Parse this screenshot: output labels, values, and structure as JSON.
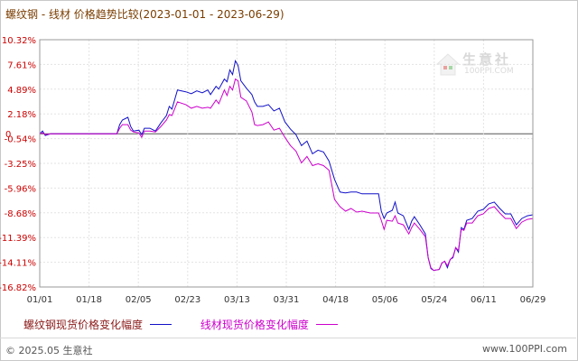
{
  "title": "螺纹钢 - 线材 价格趋势比较(2023-01-01 - 2023-06-29)",
  "watermark": {
    "name": "生意社",
    "url": "100PPI.COM"
  },
  "legend": [
    {
      "label": "螺纹钢现货价格变化幅度",
      "color": "#1010c8"
    },
    {
      "label": "线材现货价格变化幅度",
      "color": "#cc00cc"
    }
  ],
  "footer": {
    "left": "© 2025.05 生意社",
    "right": "www.100PPI.com"
  },
  "chart_data": {
    "type": "line",
    "title": "螺纹钢 - 线材 价格趋势比较(2023-01-01 - 2023-06-29)",
    "xlabel": "",
    "ylabel": "",
    "x_range": [
      "2023-01-01",
      "2023-06-29"
    ],
    "x_ticks": [
      "01/01",
      "01/18",
      "02/05",
      "02/23",
      "03/13",
      "03/31",
      "04/18",
      "05/06",
      "05/24",
      "06/11",
      "06/29"
    ],
    "y_ticks": [
      "10.32%",
      "7.61%",
      "4.89%",
      "2.18%",
      "0",
      "-0.54%",
      "-3.25%",
      "-5.96%",
      "-8.68%",
      "-11.39%",
      "-14.11%",
      "-16.82%"
    ],
    "ylim": [
      -16.82,
      10.32
    ],
    "grid": true,
    "legend_position": "bottom",
    "series": [
      {
        "name": "螺纹钢现货价格变化幅度",
        "color": "#1010c8",
        "points": [
          [
            "2023-01-01",
            0
          ],
          [
            "2023-01-02",
            0.3
          ],
          [
            "2023-01-03",
            -0.2
          ],
          [
            "2023-01-05",
            0
          ],
          [
            "2023-01-10",
            0
          ],
          [
            "2023-01-15",
            0
          ],
          [
            "2023-01-20",
            0
          ],
          [
            "2023-01-25",
            0
          ],
          [
            "2023-01-29",
            0
          ],
          [
            "2023-01-30",
            1.0
          ],
          [
            "2023-01-31",
            1.5
          ],
          [
            "2023-02-02",
            1.8
          ],
          [
            "2023-02-03",
            0.8
          ],
          [
            "2023-02-04",
            0.3
          ],
          [
            "2023-02-06",
            0.4
          ],
          [
            "2023-02-07",
            -0.1
          ],
          [
            "2023-02-08",
            0.6
          ],
          [
            "2023-02-10",
            0.6
          ],
          [
            "2023-02-12",
            0.3
          ],
          [
            "2023-02-14",
            1.2
          ],
          [
            "2023-02-16",
            2.0
          ],
          [
            "2023-02-17",
            3.0
          ],
          [
            "2023-02-18",
            2.7
          ],
          [
            "2023-02-20",
            4.8
          ],
          [
            "2023-02-23",
            4.6
          ],
          [
            "2023-02-25",
            4.4
          ],
          [
            "2023-02-27",
            4.7
          ],
          [
            "2023-03-01",
            4.5
          ],
          [
            "2023-03-03",
            4.8
          ],
          [
            "2023-03-04",
            4.3
          ],
          [
            "2023-03-06",
            5.2
          ],
          [
            "2023-03-07",
            4.9
          ],
          [
            "2023-03-09",
            6.0
          ],
          [
            "2023-03-10",
            5.7
          ],
          [
            "2023-03-11",
            7.0
          ],
          [
            "2023-03-12",
            6.5
          ],
          [
            "2023-03-13",
            8.0
          ],
          [
            "2023-03-14",
            7.5
          ],
          [
            "2023-03-15",
            5.8
          ],
          [
            "2023-03-17",
            5.0
          ],
          [
            "2023-03-19",
            4.3
          ],
          [
            "2023-03-20",
            3.5
          ],
          [
            "2023-03-21",
            3.0
          ],
          [
            "2023-03-23",
            3.0
          ],
          [
            "2023-03-25",
            3.2
          ],
          [
            "2023-03-27",
            2.5
          ],
          [
            "2023-03-29",
            2.8
          ],
          [
            "2023-03-31",
            1.3
          ],
          [
            "2023-04-02",
            0.5
          ],
          [
            "2023-04-04",
            -0.1
          ],
          [
            "2023-04-06",
            -1.3
          ],
          [
            "2023-04-08",
            -0.8
          ],
          [
            "2023-04-10",
            -2.2
          ],
          [
            "2023-04-12",
            -1.8
          ],
          [
            "2023-04-14",
            -2.0
          ],
          [
            "2023-04-16",
            -3.0
          ],
          [
            "2023-04-18",
            -5.0
          ],
          [
            "2023-04-20",
            -6.4
          ],
          [
            "2023-04-22",
            -6.5
          ],
          [
            "2023-04-24",
            -6.4
          ],
          [
            "2023-04-26",
            -6.4
          ],
          [
            "2023-04-28",
            -6.6
          ],
          [
            "2023-05-01",
            -6.6
          ],
          [
            "2023-05-04",
            -6.6
          ],
          [
            "2023-05-05",
            -8.5
          ],
          [
            "2023-05-06",
            -9.3
          ],
          [
            "2023-05-07",
            -8.7
          ],
          [
            "2023-05-09",
            -8.4
          ],
          [
            "2023-05-10",
            -7.5
          ],
          [
            "2023-05-11",
            -8.7
          ],
          [
            "2023-05-13",
            -9.0
          ],
          [
            "2023-05-15",
            -10.5
          ],
          [
            "2023-05-16",
            -9.6
          ],
          [
            "2023-05-17",
            -9.1
          ],
          [
            "2023-05-19",
            -10.0
          ],
          [
            "2023-05-21",
            -11.0
          ],
          [
            "2023-05-22",
            -13.6
          ],
          [
            "2023-05-23",
            -14.8
          ],
          [
            "2023-05-24",
            -15.0
          ],
          [
            "2023-05-26",
            -14.9
          ],
          [
            "2023-05-27",
            -14.2
          ],
          [
            "2023-05-28",
            -14.0
          ],
          [
            "2023-05-29",
            -14.7
          ],
          [
            "2023-05-30",
            -13.8
          ],
          [
            "2023-05-31",
            -13.6
          ],
          [
            "2023-06-01",
            -12.5
          ],
          [
            "2023-06-02",
            -13.0
          ],
          [
            "2023-06-03",
            -10.3
          ],
          [
            "2023-06-04",
            -10.5
          ],
          [
            "2023-06-05",
            -9.5
          ],
          [
            "2023-06-07",
            -9.3
          ],
          [
            "2023-06-09",
            -8.5
          ],
          [
            "2023-06-11",
            -8.3
          ],
          [
            "2023-06-13",
            -7.7
          ],
          [
            "2023-06-15",
            -7.5
          ],
          [
            "2023-06-17",
            -8.2
          ],
          [
            "2023-06-19",
            -8.8
          ],
          [
            "2023-06-21",
            -8.8
          ],
          [
            "2023-06-23",
            -10.0
          ],
          [
            "2023-06-25",
            -9.3
          ],
          [
            "2023-06-27",
            -9.0
          ],
          [
            "2023-06-29",
            -8.9
          ]
        ]
      },
      {
        "name": "线材现货价格变化幅度",
        "color": "#cc00cc",
        "points": [
          [
            "2023-01-01",
            0
          ],
          [
            "2023-01-02",
            0.1
          ],
          [
            "2023-01-03",
            -0.1
          ],
          [
            "2023-01-05",
            0
          ],
          [
            "2023-01-10",
            0
          ],
          [
            "2023-01-15",
            0
          ],
          [
            "2023-01-20",
            0
          ],
          [
            "2023-01-25",
            0
          ],
          [
            "2023-01-29",
            0
          ],
          [
            "2023-01-30",
            0.6
          ],
          [
            "2023-01-31",
            1.0
          ],
          [
            "2023-02-02",
            1.0
          ],
          [
            "2023-02-03",
            0.4
          ],
          [
            "2023-02-04",
            0.2
          ],
          [
            "2023-02-06",
            0.1
          ],
          [
            "2023-02-07",
            -0.4
          ],
          [
            "2023-02-08",
            0.3
          ],
          [
            "2023-02-10",
            0.3
          ],
          [
            "2023-02-12",
            0.2
          ],
          [
            "2023-02-14",
            0.8
          ],
          [
            "2023-02-16",
            1.5
          ],
          [
            "2023-02-17",
            2.1
          ],
          [
            "2023-02-18",
            2.0
          ],
          [
            "2023-02-20",
            3.5
          ],
          [
            "2023-02-23",
            3.2
          ],
          [
            "2023-02-25",
            2.8
          ],
          [
            "2023-02-27",
            3.0
          ],
          [
            "2023-03-01",
            2.8
          ],
          [
            "2023-03-03",
            2.9
          ],
          [
            "2023-03-04",
            2.8
          ],
          [
            "2023-03-06",
            3.7
          ],
          [
            "2023-03-07",
            3.3
          ],
          [
            "2023-03-09",
            4.8
          ],
          [
            "2023-03-10",
            4.2
          ],
          [
            "2023-03-11",
            5.2
          ],
          [
            "2023-03-12",
            4.8
          ],
          [
            "2023-03-13",
            6.0
          ],
          [
            "2023-03-14",
            5.8
          ],
          [
            "2023-03-15",
            4.0
          ],
          [
            "2023-03-17",
            3.6
          ],
          [
            "2023-03-19",
            2.4
          ],
          [
            "2023-03-20",
            1.0
          ],
          [
            "2023-03-21",
            0.9
          ],
          [
            "2023-03-23",
            1.0
          ],
          [
            "2023-03-25",
            1.3
          ],
          [
            "2023-03-27",
            0.4
          ],
          [
            "2023-03-29",
            0.6
          ],
          [
            "2023-03-31",
            -0.4
          ],
          [
            "2023-04-02",
            -1.3
          ],
          [
            "2023-04-04",
            -1.9
          ],
          [
            "2023-04-06",
            -3.2
          ],
          [
            "2023-04-08",
            -2.5
          ],
          [
            "2023-04-10",
            -3.5
          ],
          [
            "2023-04-12",
            -3.3
          ],
          [
            "2023-04-14",
            -3.5
          ],
          [
            "2023-04-16",
            -4.0
          ],
          [
            "2023-04-18",
            -7.2
          ],
          [
            "2023-04-20",
            -8.0
          ],
          [
            "2023-04-22",
            -8.5
          ],
          [
            "2023-04-24",
            -8.2
          ],
          [
            "2023-04-26",
            -8.6
          ],
          [
            "2023-04-28",
            -8.5
          ],
          [
            "2023-05-01",
            -8.7
          ],
          [
            "2023-05-04",
            -8.7
          ],
          [
            "2023-05-05",
            -9.5
          ],
          [
            "2023-05-06",
            -10.5
          ],
          [
            "2023-05-07",
            -9.5
          ],
          [
            "2023-05-09",
            -9.6
          ],
          [
            "2023-05-10",
            -9.0
          ],
          [
            "2023-05-11",
            -9.8
          ],
          [
            "2023-05-13",
            -10.0
          ],
          [
            "2023-05-15",
            -11.0
          ],
          [
            "2023-05-16",
            -10.3
          ],
          [
            "2023-05-17",
            -9.8
          ],
          [
            "2023-05-19",
            -10.5
          ],
          [
            "2023-05-21",
            -11.3
          ],
          [
            "2023-05-22",
            -13.6
          ],
          [
            "2023-05-23",
            -14.7
          ],
          [
            "2023-05-24",
            -15.0
          ],
          [
            "2023-05-26",
            -14.9
          ],
          [
            "2023-05-27",
            -14.2
          ],
          [
            "2023-05-28",
            -14.0
          ],
          [
            "2023-05-29",
            -14.5
          ],
          [
            "2023-05-30",
            -13.8
          ],
          [
            "2023-05-31",
            -13.5
          ],
          [
            "2023-06-01",
            -12.5
          ],
          [
            "2023-06-02",
            -12.8
          ],
          [
            "2023-06-03",
            -10.5
          ],
          [
            "2023-06-04",
            -10.6
          ],
          [
            "2023-06-05",
            -9.8
          ],
          [
            "2023-06-07",
            -9.8
          ],
          [
            "2023-06-09",
            -9.0
          ],
          [
            "2023-06-11",
            -8.8
          ],
          [
            "2023-06-13",
            -8.2
          ],
          [
            "2023-06-15",
            -8.0
          ],
          [
            "2023-06-17",
            -8.7
          ],
          [
            "2023-06-19",
            -9.3
          ],
          [
            "2023-06-21",
            -9.3
          ],
          [
            "2023-06-23",
            -10.4
          ],
          [
            "2023-06-25",
            -9.7
          ],
          [
            "2023-06-27",
            -9.4
          ],
          [
            "2023-06-29",
            -9.3
          ]
        ]
      }
    ]
  }
}
